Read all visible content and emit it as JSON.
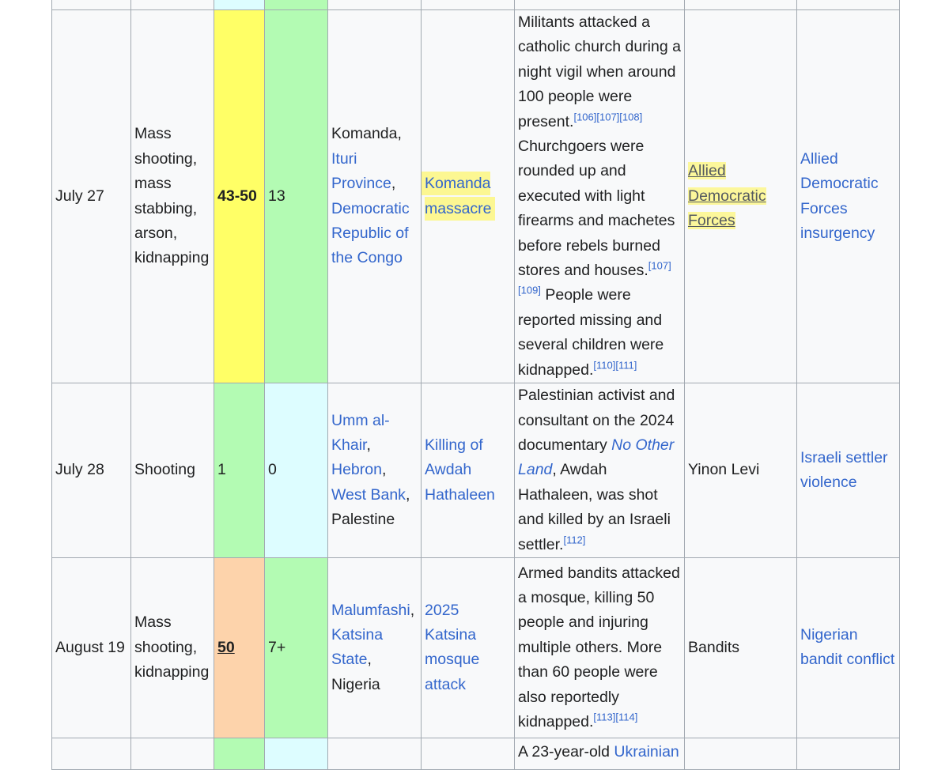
{
  "rows": [
    {
      "date": "July 27",
      "type": [
        "Mass",
        "shooting,",
        "mass",
        "stabbing,",
        "arson,",
        "kidnapping"
      ],
      "dead": "43-50",
      "injured": "13",
      "location": {
        "town": "Komanda,",
        "province": "Ituri Province",
        "comma": ",",
        "country": "Democratic Republic of the Congo"
      },
      "article": "Komanda massacre",
      "description": {
        "p1": "Militants attacked a catholic church during a night vigil when around 100 people were present.",
        "ref1": "[106][107][108]",
        "p2": " Churchgoers were rounded up and executed with light firearms and machetes before rebels burned stores and houses.",
        "ref2": "[107][109]",
        "p3": " People were reported missing and several children were kidnapped.",
        "ref3": "[110][111]"
      },
      "perpetrator": "Allied Democratic Forces",
      "part_of": "Allied Democratic Forces insurgency"
    },
    {
      "date": "July 28",
      "type": [
        "Shooting"
      ],
      "dead": "1",
      "injured": "0",
      "location": {
        "town": "Umm al-Khair",
        "c1": ",",
        "city": "Hebron",
        "c2": ",",
        "region": "West Bank",
        "c3": ",",
        "country": "Palestine"
      },
      "article": "Killing of Awdah Hathaleen",
      "description": {
        "p1": "Palestinian activist and consultant on the 2024 documentary ",
        "film": "No Other Land",
        "p2": ", Awdah Hathaleen, was shot and killed by an Israeli settler.",
        "ref1": "[112]"
      },
      "perpetrator": "Yinon Levi",
      "part_of": "Israeli settler violence"
    },
    {
      "date": "August 19",
      "type": [
        "Mass",
        "shooting,",
        "kidnapping"
      ],
      "dead": "50",
      "injured": "7+",
      "location": {
        "town": "Malumfashi",
        "c1": ",",
        "state": "Katsina State",
        "c2": ",",
        "country": "Nigeria"
      },
      "article": "2025 Katsina mosque attack",
      "description": {
        "p1": "Armed bandits attacked a mosque, killing 50 people and injuring multiple others. More than 60 people were also reportedly kidnapped.",
        "ref1": "[113][114]"
      },
      "perpetrator": "Bandits",
      "part_of": "Nigerian bandit conflict"
    },
    {
      "description": {
        "p1": "A 23-year-old ",
        "link": "Ukrainian"
      }
    }
  ],
  "colors": {
    "yellow": "#ffff66",
    "green": "#b3fbb3",
    "cyan": "#ddfdff",
    "orange": "#fdd3ab",
    "link": "#3366cc",
    "border": "#a2a9b1"
  }
}
